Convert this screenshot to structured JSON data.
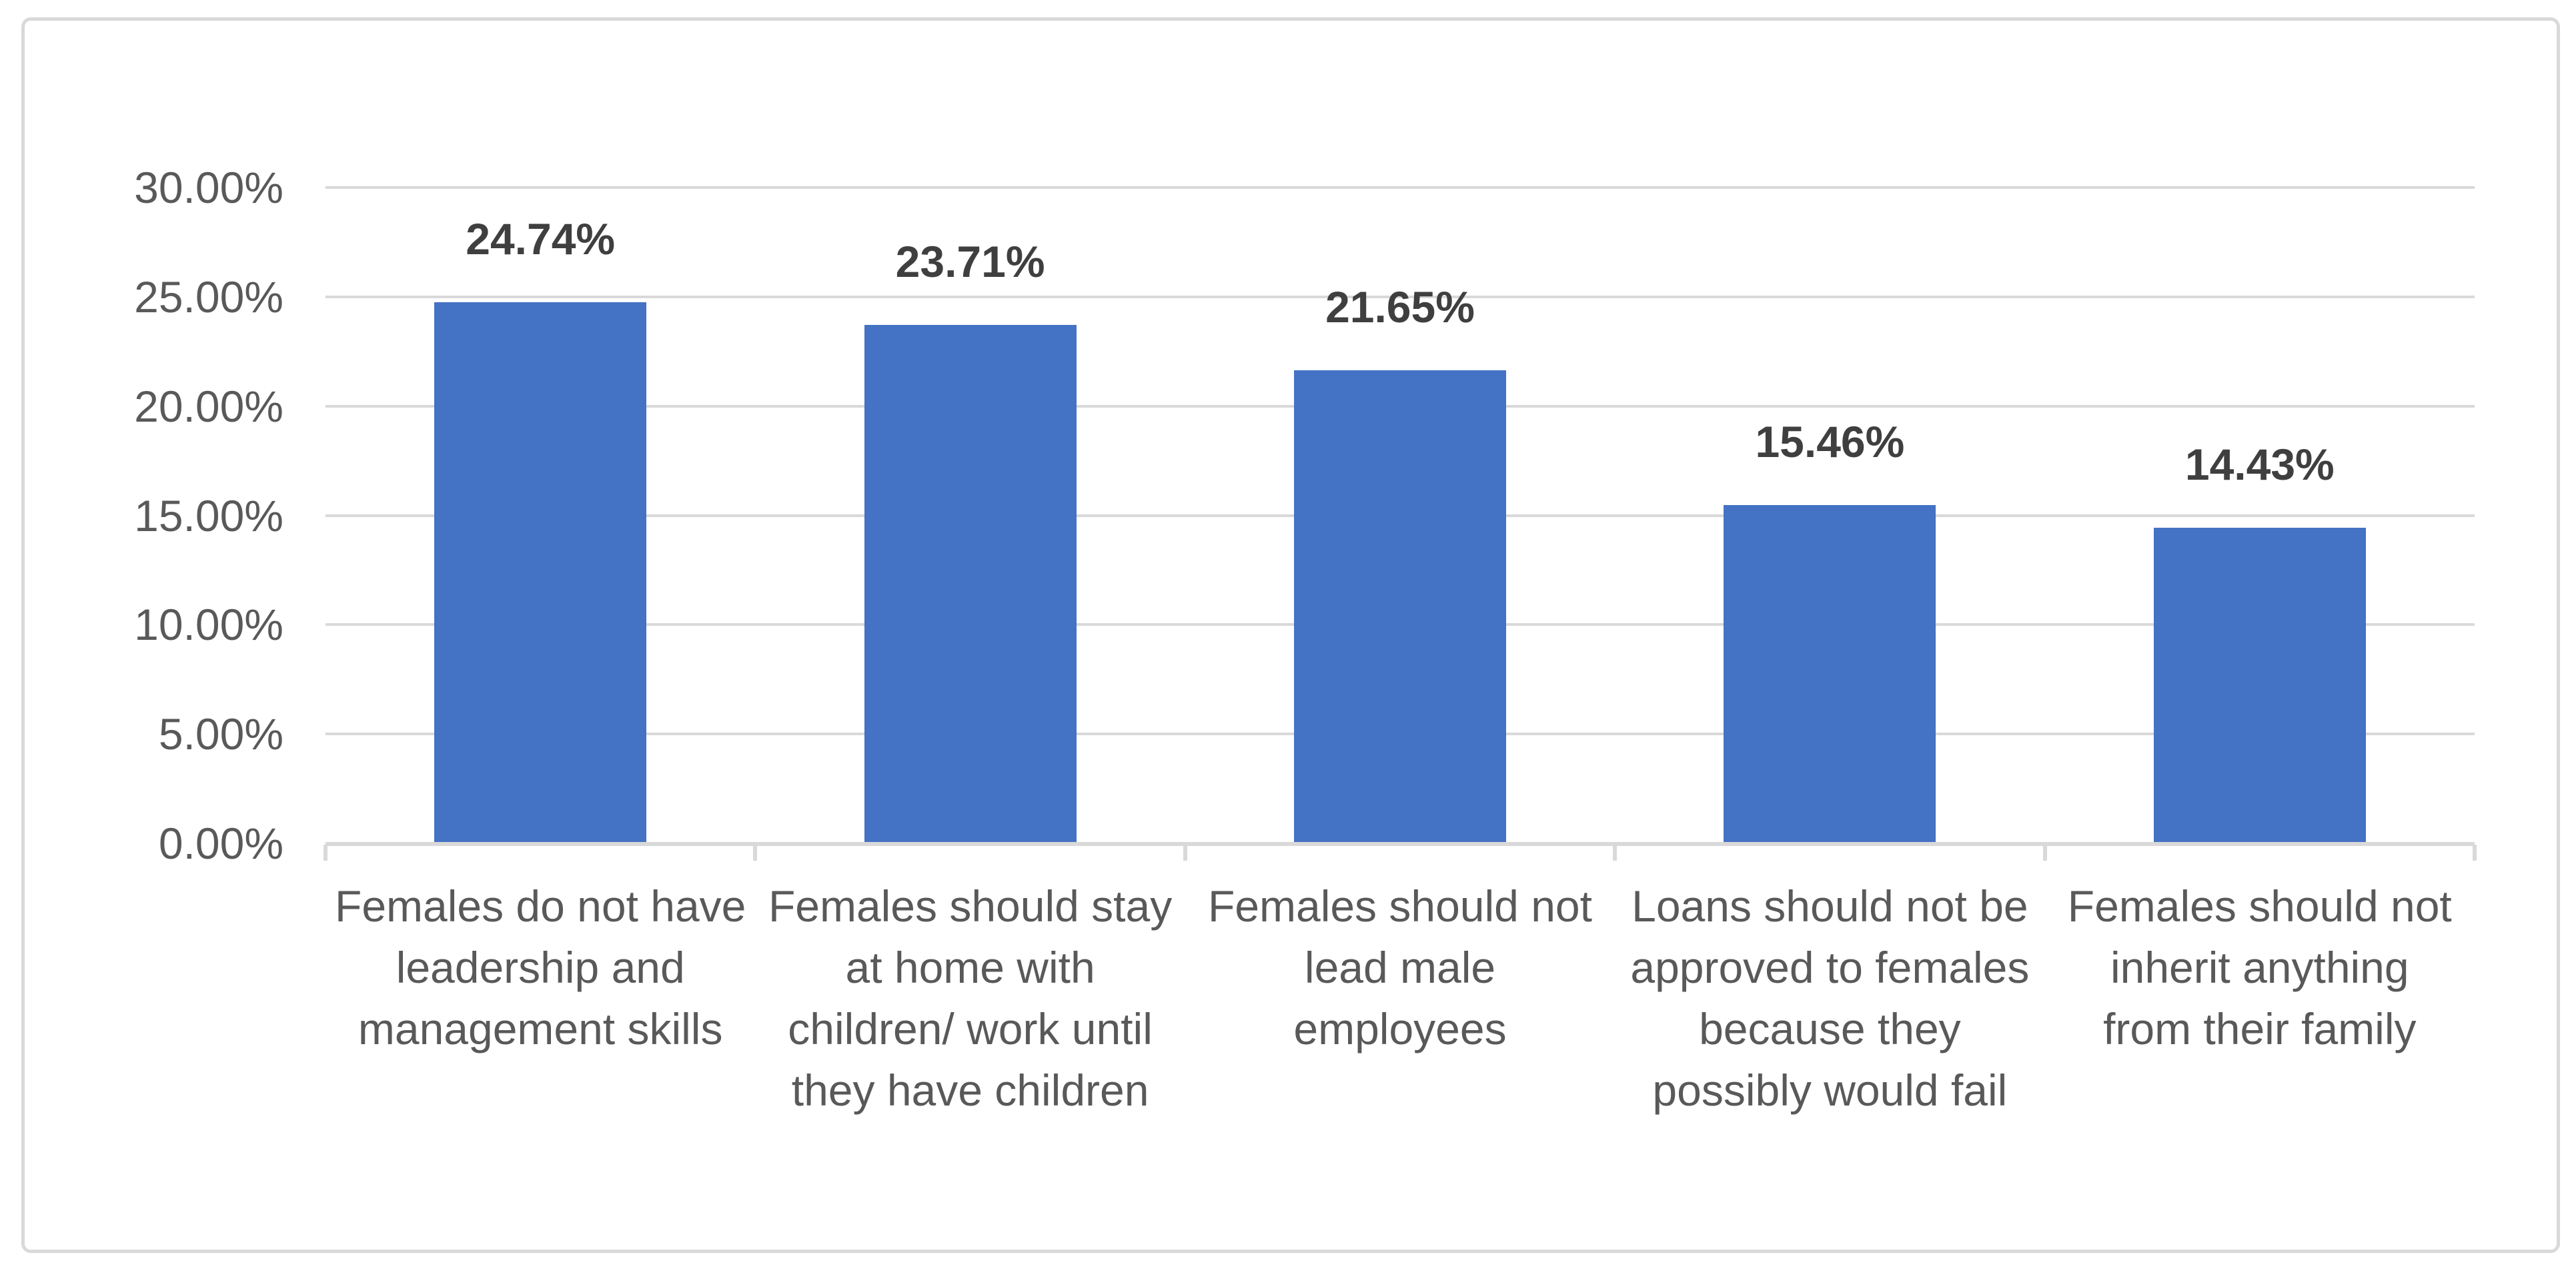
{
  "chart_data": {
    "type": "bar",
    "title": "",
    "xlabel": "",
    "ylabel": "",
    "categories": [
      "Females do not have leadership and management skills",
      "Females should stay at home with children/ work until they have children",
      "Females should not lead male employees",
      "Loans should not be approved to females because they possibly would fail",
      "Females should not inherit anything from their family"
    ],
    "category_lines": [
      "Females do not have\nleadership and\nmanagement skills",
      "Females should stay\nat home with\nchildren/ work until\nthey have children",
      "Females should not\nlead male\nemployees",
      "Loans should not be\napproved to females\nbecause they\npossibly would fail",
      "Females should not\ninherit anything\nfrom their family"
    ],
    "values": [
      24.74,
      23.71,
      21.65,
      15.46,
      14.43
    ],
    "value_labels": [
      "24.74%",
      "23.71%",
      "21.65%",
      "15.46%",
      "14.43%"
    ],
    "y_tick_values": [
      0,
      5,
      10,
      15,
      20,
      25,
      30
    ],
    "y_tick_labels": [
      "0.00%",
      "5.00%",
      "10.00%",
      "15.00%",
      "20.00%",
      "25.00%",
      "30.00%"
    ],
    "ylim": [
      0,
      30
    ],
    "y_step": 5,
    "grid": true,
    "legend": "none",
    "colors": {
      "bar_fill": "#4472C4",
      "gridline": "#D9D9D9",
      "axis_line": "#D9D9D9",
      "frame_border": "#D9D9D9",
      "value_label_text": "#3F3F3F",
      "axis_label_text": "#595959",
      "background": "#FFFFFF"
    }
  }
}
